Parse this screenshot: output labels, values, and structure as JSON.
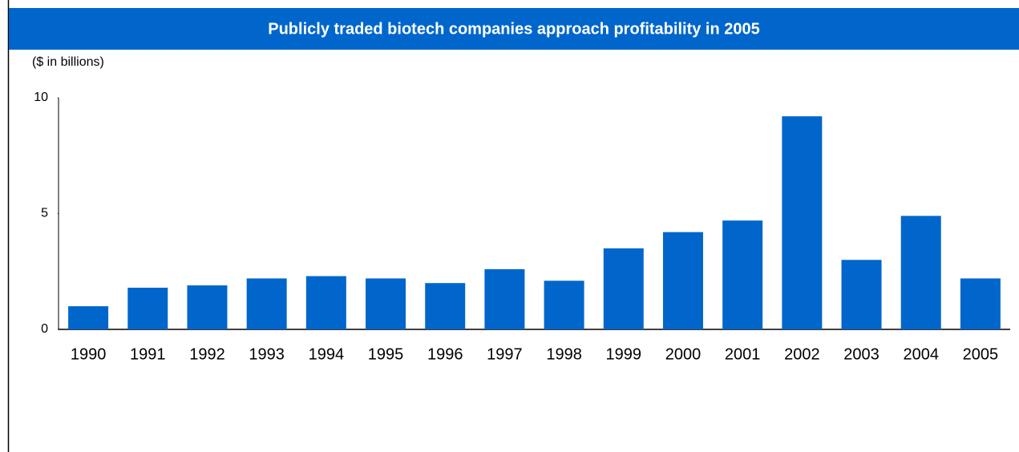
{
  "chart_data": {
    "type": "bar",
    "title": "Publicly traded biotech companies approach profitability in 2005",
    "y_label": "($ in billions)",
    "categories": [
      "1990",
      "1991",
      "1992",
      "1993",
      "1994",
      "1995",
      "1996",
      "1997",
      "1998",
      "1999",
      "2000",
      "2001",
      "2002",
      "2003",
      "2004",
      "2005"
    ],
    "values": [
      1.0,
      1.8,
      1.9,
      2.2,
      2.3,
      2.2,
      2.0,
      2.6,
      2.1,
      3.5,
      4.2,
      4.7,
      9.2,
      3.0,
      4.9,
      2.2
    ],
    "color": "#0066cc",
    "ylim": [
      0,
      10
    ],
    "yticks": [
      0,
      5,
      10
    ],
    "grid": false
  }
}
